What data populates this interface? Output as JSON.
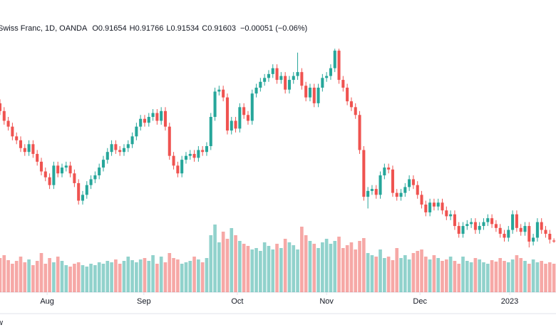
{
  "chart_data": {
    "type": "candlestick",
    "symbol": "Swiss Franc, 1D, OANDA",
    "ohlc_labels": [
      "O",
      "H",
      "L",
      "C"
    ],
    "change": "−0.00051 (−0.06%)",
    "footer_label": "w",
    "up_color": "#26a69a",
    "down_color": "#ef5350",
    "xlim": [
      0,
      134.5
    ],
    "xticks": [
      {
        "value": 11.4,
        "label": "Aug"
      },
      {
        "value": 34.8,
        "label": "Sep"
      },
      {
        "value": 57.4,
        "label": "Oct"
      },
      {
        "value": 79,
        "label": "Nov"
      },
      {
        "value": 101.6,
        "label": "Dec"
      },
      {
        "value": 123.3,
        "label": "2023"
      }
    ],
    "ylim": [
      0.89,
      1.04
    ],
    "volume_lim": [
      0,
      100
    ],
    "open": [
      0.987,
      0.983,
      0.978,
      0.975,
      0.97,
      0.968,
      0.964,
      0.962,
      0.966,
      0.961,
      0.957,
      0.952,
      0.949,
      0.945,
      0.955,
      0.951,
      0.954,
      0.955,
      0.951,
      0.946,
      0.937,
      0.94,
      0.945,
      0.948,
      0.95,
      0.954,
      0.958,
      0.962,
      0.966,
      0.963,
      0.962,
      0.964,
      0.966,
      0.97,
      0.975,
      0.979,
      0.977,
      0.98,
      0.982,
      0.978,
      0.983,
      0.975,
      0.96,
      0.955,
      0.951,
      0.958,
      0.96,
      0.961,
      0.959,
      0.963,
      0.962,
      0.965,
      0.98,
      0.993,
      0.994,
      0.99,
      0.973,
      0.978,
      0.974,
      0.985,
      0.981,
      0.978,
      0.992,
      0.995,
      0.998,
      1.0,
      1.002,
      1.005,
      0.999,
      1.001,
      0.994,
      0.999,
      1.001,
      1.003,
      0.996,
      0.99,
      0.995,
      0.987,
      0.995,
      1.0,
      1.001,
      1.005,
      1.014,
      0.999,
      0.995,
      0.988,
      0.985,
      0.981,
      0.963,
      0.939,
      0.942,
      0.943,
      0.94,
      0.95,
      0.954,
      0.953,
      0.941,
      0.939,
      0.941,
      0.944,
      0.948,
      0.945,
      0.94,
      0.935,
      0.931,
      0.936,
      0.934,
      0.936,
      0.932,
      0.929,
      0.93,
      0.924,
      0.92,
      0.924,
      0.925,
      0.926,
      0.922,
      0.924,
      0.926,
      0.928,
      0.925,
      0.923,
      0.92,
      0.918,
      0.922,
      0.93,
      0.923,
      0.921,
      0.924,
      0.916,
      0.918,
      0.926,
      0.922,
      0.92,
      0.91654
    ],
    "high": [
      0.989,
      0.985,
      0.98,
      0.977,
      0.972,
      0.97,
      0.966,
      0.968,
      0.968,
      0.963,
      0.959,
      0.954,
      0.951,
      0.957,
      0.957,
      0.956,
      0.957,
      0.957,
      0.953,
      0.948,
      0.942,
      0.947,
      0.95,
      0.952,
      0.956,
      0.96,
      0.964,
      0.968,
      0.968,
      0.965,
      0.966,
      0.968,
      0.972,
      0.977,
      0.981,
      0.981,
      0.982,
      0.984,
      0.984,
      0.985,
      0.985,
      0.977,
      0.962,
      0.957,
      0.96,
      0.962,
      0.963,
      0.963,
      0.965,
      0.965,
      0.967,
      0.982,
      0.995,
      0.996,
      0.996,
      0.992,
      0.98,
      0.98,
      0.987,
      0.987,
      0.983,
      0.994,
      0.997,
      1.0,
      1.002,
      1.004,
      1.007,
      1.007,
      1.003,
      1.003,
      1.001,
      1.003,
      1.013,
      1.005,
      0.998,
      0.997,
      0.997,
      0.997,
      1.002,
      1.003,
      1.007,
      1.015,
      1.015,
      1.001,
      0.997,
      0.99,
      0.987,
      0.983,
      0.965,
      0.944,
      0.945,
      0.945,
      0.952,
      0.956,
      0.956,
      0.955,
      0.943,
      0.943,
      0.946,
      0.95,
      0.95,
      0.947,
      0.942,
      0.937,
      0.938,
      0.938,
      0.938,
      0.938,
      0.934,
      0.932,
      0.932,
      0.926,
      0.926,
      0.927,
      0.928,
      0.928,
      0.926,
      0.928,
      0.93,
      0.93,
      0.927,
      0.925,
      0.922,
      0.924,
      0.932,
      0.932,
      0.925,
      0.926,
      0.926,
      0.92,
      0.928,
      0.928,
      0.924,
      0.922,
      0.91766
    ],
    "low": [
      0.981,
      0.976,
      0.973,
      0.968,
      0.966,
      0.962,
      0.96,
      0.96,
      0.959,
      0.955,
      0.95,
      0.947,
      0.943,
      0.943,
      0.949,
      0.949,
      0.952,
      0.949,
      0.944,
      0.935,
      0.935,
      0.938,
      0.943,
      0.946,
      0.948,
      0.952,
      0.956,
      0.96,
      0.961,
      0.96,
      0.96,
      0.962,
      0.964,
      0.968,
      0.973,
      0.975,
      0.975,
      0.978,
      0.976,
      0.976,
      0.973,
      0.958,
      0.953,
      0.949,
      0.949,
      0.956,
      0.958,
      0.957,
      0.957,
      0.96,
      0.96,
      0.963,
      0.978,
      0.991,
      0.988,
      0.971,
      0.971,
      0.972,
      0.972,
      0.979,
      0.976,
      0.976,
      0.99,
      0.993,
      0.996,
      0.998,
      1.0,
      0.997,
      0.997,
      0.992,
      0.992,
      0.997,
      0.999,
      0.994,
      0.988,
      0.988,
      0.985,
      0.985,
      0.993,
      0.998,
      0.999,
      1.003,
      0.997,
      0.993,
      0.986,
      0.983,
      0.979,
      0.961,
      0.937,
      0.933,
      0.94,
      0.938,
      0.938,
      0.948,
      0.951,
      0.939,
      0.937,
      0.937,
      0.939,
      0.942,
      0.943,
      0.938,
      0.933,
      0.929,
      0.929,
      0.932,
      0.932,
      0.93,
      0.927,
      0.927,
      0.922,
      0.918,
      0.918,
      0.922,
      0.923,
      0.92,
      0.92,
      0.922,
      0.924,
      0.923,
      0.921,
      0.918,
      0.916,
      0.916,
      0.92,
      0.921,
      0.919,
      0.919,
      0.913,
      0.914,
      0.916,
      0.92,
      0.918,
      0.915,
      0.91534
    ],
    "close": [
      0.983,
      0.978,
      0.975,
      0.97,
      0.968,
      0.964,
      0.962,
      0.966,
      0.961,
      0.957,
      0.952,
      0.949,
      0.945,
      0.955,
      0.951,
      0.954,
      0.955,
      0.951,
      0.946,
      0.937,
      0.94,
      0.945,
      0.948,
      0.95,
      0.954,
      0.958,
      0.962,
      0.966,
      0.963,
      0.962,
      0.964,
      0.966,
      0.97,
      0.975,
      0.979,
      0.977,
      0.98,
      0.982,
      0.978,
      0.983,
      0.975,
      0.96,
      0.955,
      0.951,
      0.958,
      0.96,
      0.961,
      0.959,
      0.963,
      0.962,
      0.965,
      0.98,
      0.993,
      0.994,
      0.99,
      0.973,
      0.978,
      0.974,
      0.985,
      0.981,
      0.978,
      0.992,
      0.995,
      0.998,
      1.0,
      1.002,
      1.005,
      0.999,
      1.001,
      0.994,
      0.999,
      1.001,
      1.003,
      0.996,
      0.99,
      0.995,
      0.987,
      0.995,
      1.0,
      1.001,
      1.005,
      1.014,
      0.999,
      0.995,
      0.988,
      0.985,
      0.981,
      0.963,
      0.939,
      0.942,
      0.943,
      0.94,
      0.95,
      0.954,
      0.953,
      0.941,
      0.939,
      0.941,
      0.944,
      0.948,
      0.945,
      0.94,
      0.935,
      0.931,
      0.936,
      0.934,
      0.936,
      0.932,
      0.929,
      0.93,
      0.924,
      0.92,
      0.924,
      0.925,
      0.926,
      0.922,
      0.924,
      0.926,
      0.928,
      0.925,
      0.923,
      0.92,
      0.918,
      0.922,
      0.93,
      0.923,
      0.921,
      0.924,
      0.916,
      0.918,
      0.926,
      0.922,
      0.92,
      0.917,
      0.91603
    ],
    "volume": [
      48,
      52,
      45,
      40,
      44,
      50,
      42,
      46,
      38,
      44,
      55,
      40,
      48,
      42,
      50,
      44,
      38,
      36,
      40,
      42,
      38,
      36,
      40,
      38,
      42,
      40,
      44,
      42,
      46,
      40,
      44,
      50,
      45,
      42,
      46,
      48,
      44,
      52,
      40,
      50,
      42,
      55,
      48,
      46,
      40,
      42,
      44,
      50,
      46,
      42,
      48,
      80,
      95,
      70,
      85,
      75,
      90,
      80,
      72,
      68,
      65,
      60,
      62,
      58,
      70,
      65,
      60,
      68,
      62,
      75,
      70,
      66,
      60,
      92,
      80,
      72,
      68,
      62,
      70,
      75,
      68,
      72,
      78,
      62,
      66,
      70,
      60,
      72,
      76,
      55,
      52,
      50,
      60,
      48,
      50,
      45,
      62,
      48,
      52,
      46,
      55,
      58,
      60,
      50,
      46,
      52,
      48,
      44,
      46,
      50,
      44,
      40,
      50,
      44,
      42,
      48,
      46,
      42,
      40,
      45,
      43,
      48,
      44,
      42,
      46,
      52,
      48,
      44,
      40,
      46,
      42,
      44,
      40,
      42,
      40
    ]
  }
}
